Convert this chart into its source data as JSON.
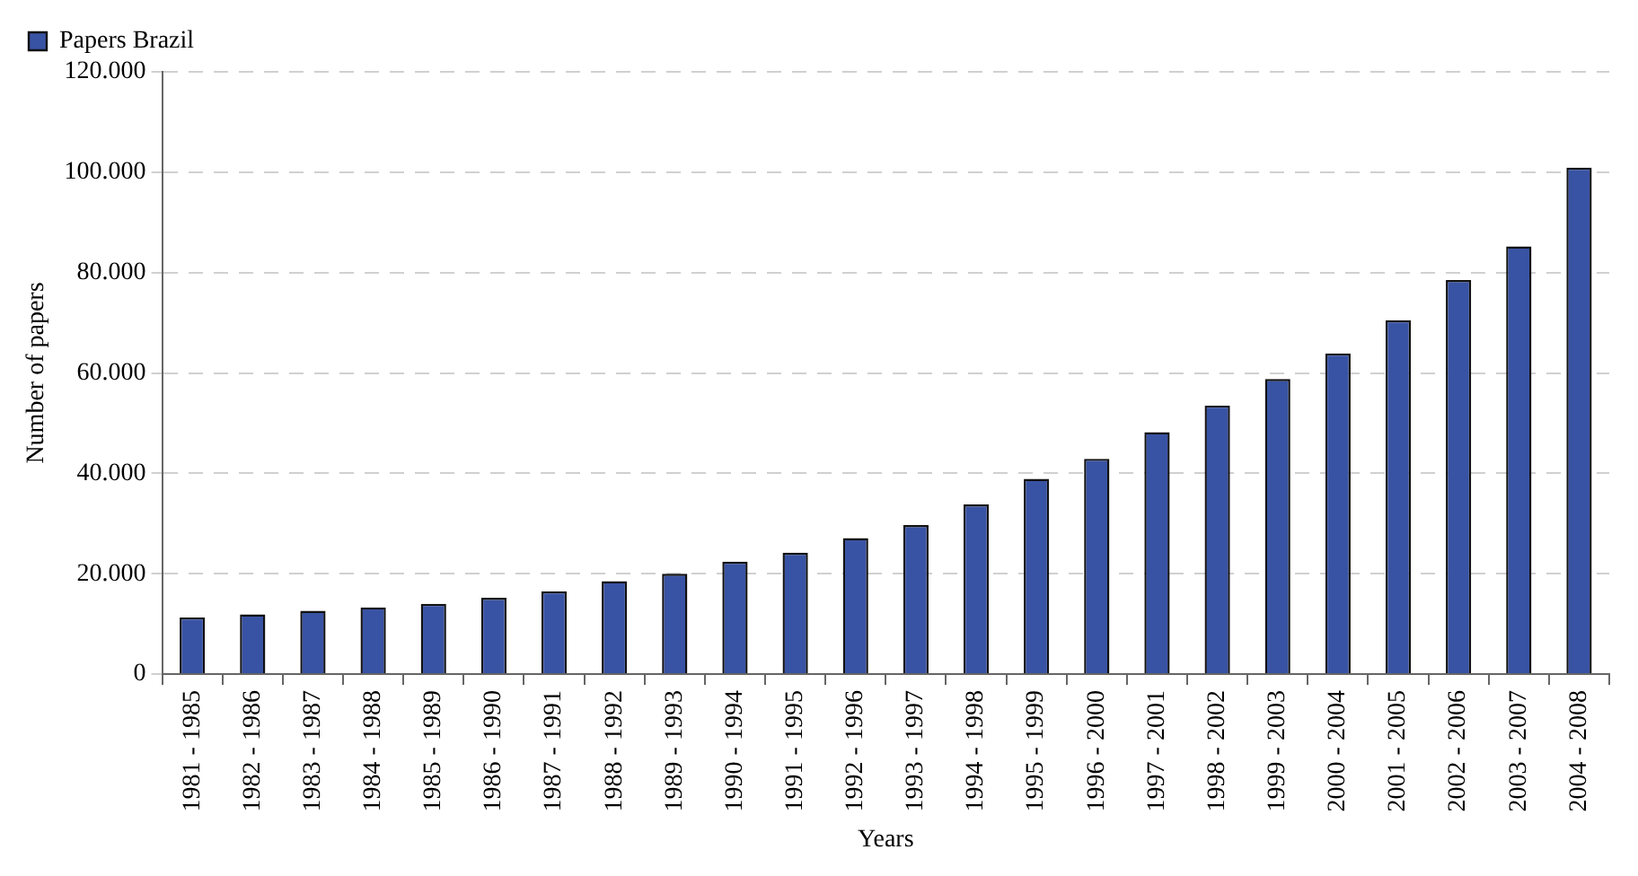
{
  "chart_data": {
    "type": "bar",
    "xlabel": "Years",
    "ylabel": "Number of papers",
    "categories": [
      "1981 - 1985",
      "1982 - 1986",
      "1983 - 1987",
      "1984 - 1988",
      "1985 - 1989",
      "1986 - 1990",
      "1987 - 1991",
      "1988 - 1992",
      "1989 - 1993",
      "1990 - 1994",
      "1991 - 1995",
      "1992 - 1996",
      "1993 - 1997",
      "1994 - 1998",
      "1995 - 1999",
      "1996 - 2000",
      "1997 - 2001",
      "1998 - 2002",
      "1999 - 2003",
      "2000 - 2004",
      "2001 - 2005",
      "2002 - 2006",
      "2003 - 2007",
      "2004 - 2008"
    ],
    "series": [
      {
        "name": "Papers Brazil",
        "color": "#3953a4",
        "values": [
          11300,
          11900,
          12600,
          13300,
          14000,
          15200,
          16500,
          18500,
          20000,
          22400,
          24200,
          27100,
          29700,
          33800,
          38900,
          42900,
          48200,
          53500,
          58800,
          63900,
          70500,
          78500,
          85200,
          100900
        ]
      }
    ],
    "ylim": [
      0,
      120000
    ],
    "yticks": [
      0,
      {
        "value": 20000,
        "label": "20.000"
      },
      {
        "value": 40000,
        "label": "40.000"
      },
      {
        "value": 60000,
        "label": "60.000"
      },
      {
        "value": 80000,
        "label": "80.000"
      },
      {
        "value": 100000,
        "label": "100.000"
      },
      {
        "value": 120000,
        "label": "120.000"
      }
    ],
    "grid": "y",
    "legend": "top left"
  }
}
